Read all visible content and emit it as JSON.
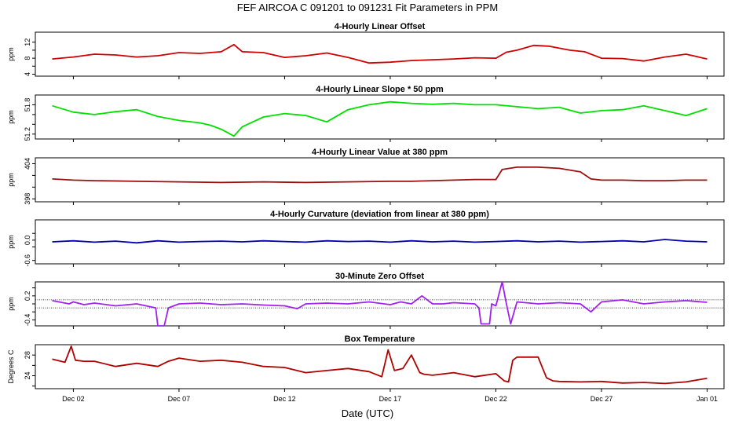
{
  "title": "FEF   AIRCOA C   091201 to 091231   Fit Parameters in PPM",
  "xlabel": "Date (UTC)",
  "x_axis": {
    "unit": "days since Dec 01",
    "range": [
      -0.8,
      31.8
    ],
    "ticks": [
      {
        "value": 1,
        "label": "Dec 02"
      },
      {
        "value": 6,
        "label": "Dec 07"
      },
      {
        "value": 11,
        "label": "Dec 12"
      },
      {
        "value": 16,
        "label": "Dec 17"
      },
      {
        "value": 21,
        "label": "Dec 22"
      },
      {
        "value": 26,
        "label": "Dec 27"
      },
      {
        "value": 31,
        "label": "Jan 01"
      }
    ]
  },
  "chart_data": [
    {
      "type": "line",
      "title": "4-Hourly Linear Offset",
      "ylabel": "ppm",
      "ylim": [
        3.5,
        14.5
      ],
      "yticks": [
        4,
        6,
        8,
        10,
        12
      ],
      "ytick_labels": [
        "4",
        "",
        "8",
        "",
        "12"
      ],
      "color": "#d00000",
      "hlines": [],
      "series": [
        {
          "name": "offset",
          "x": [
            0,
            1,
            2,
            3,
            4,
            5,
            6,
            7,
            8,
            8.6,
            9,
            10,
            11,
            12,
            13,
            14,
            15,
            16,
            17,
            18,
            19,
            20,
            21,
            21.5,
            22,
            22.8,
            23.5,
            24.5,
            25.2,
            26,
            27,
            28,
            29,
            30,
            31
          ],
          "y": [
            7.8,
            8.3,
            9.0,
            8.8,
            8.3,
            8.6,
            9.4,
            9.2,
            9.6,
            11.4,
            9.6,
            9.4,
            8.2,
            8.6,
            9.3,
            8.2,
            6.8,
            7.0,
            7.4,
            7.6,
            7.8,
            8.1,
            8.0,
            9.5,
            10.0,
            11.2,
            11.0,
            10.0,
            9.6,
            8.0,
            7.9,
            7.3,
            8.3,
            9.0,
            7.8
          ]
        }
      ]
    },
    {
      "type": "line",
      "title": "4-Hourly Linear Slope * 50 ppm",
      "ylabel": "ppm",
      "ylim": [
        51.1,
        52.0
      ],
      "yticks": [
        51.2,
        51.4,
        51.6,
        51.8
      ],
      "ytick_labels": [
        "51.2",
        "",
        "",
        "51.8"
      ],
      "color": "#00e000",
      "hlines": [],
      "series": [
        {
          "name": "slope",
          "x": [
            0,
            1,
            2,
            3,
            4,
            5,
            6,
            7,
            7.5,
            8,
            8.6,
            9,
            10,
            11,
            12,
            13,
            14,
            15,
            16,
            17,
            18,
            19,
            20,
            21,
            22,
            23,
            24,
            25,
            26,
            27,
            28,
            29,
            30,
            31
          ],
          "y": [
            51.78,
            51.65,
            51.6,
            51.66,
            51.7,
            51.56,
            51.48,
            51.43,
            51.38,
            51.3,
            51.16,
            51.35,
            51.55,
            51.62,
            51.58,
            51.45,
            51.7,
            51.8,
            51.86,
            51.83,
            51.81,
            51.83,
            51.8,
            51.8,
            51.76,
            51.72,
            51.75,
            51.63,
            51.68,
            51.7,
            51.78,
            51.68,
            51.58,
            51.72
          ]
        }
      ]
    },
    {
      "type": "line",
      "title": "4-Hourly Linear Value at 380 ppm",
      "ylabel": "ppm",
      "ylim": [
        397.5,
        405
      ],
      "yticks": [
        398,
        400,
        402,
        404
      ],
      "ytick_labels": [
        "398",
        "",
        "",
        "404"
      ],
      "color": "#9b1010",
      "hlines": [],
      "series": [
        {
          "name": "value380",
          "x": [
            0,
            1,
            2,
            4,
            6,
            8,
            10,
            12,
            14,
            16,
            17,
            18,
            19,
            20,
            21,
            21.3,
            22,
            23,
            24,
            25,
            25.5,
            26,
            27,
            28,
            29,
            30,
            31
          ],
          "y": [
            401.4,
            401.2,
            401.1,
            401.0,
            400.9,
            400.8,
            400.9,
            400.8,
            400.9,
            401.0,
            401.0,
            401.1,
            401.2,
            401.3,
            401.3,
            403.0,
            403.4,
            403.4,
            403.2,
            402.6,
            401.4,
            401.2,
            401.2,
            401.1,
            401.1,
            401.2,
            401.2
          ]
        }
      ]
    },
    {
      "type": "line",
      "title": "4-Hourly Curvature (deviation from linear at 380 ppm)",
      "ylabel": "ppm",
      "ylim": [
        -0.7,
        0.6
      ],
      "yticks": [
        -0.6,
        -0.2,
        0.0,
        0.2
      ],
      "ytick_labels": [
        "-0.6",
        "",
        "0.0",
        ""
      ],
      "color": "#0000b0",
      "hlines": [],
      "series": [
        {
          "name": "curvature",
          "x": [
            0,
            1,
            2,
            3,
            4,
            5,
            6,
            7,
            8,
            9,
            10,
            11,
            12,
            13,
            14,
            15,
            16,
            17,
            18,
            19,
            20,
            21,
            22,
            23,
            24,
            25,
            26,
            27,
            28,
            29,
            30,
            31
          ],
          "y": [
            -0.05,
            -0.02,
            -0.06,
            -0.03,
            -0.08,
            -0.02,
            -0.06,
            -0.04,
            -0.03,
            -0.05,
            -0.02,
            -0.04,
            -0.06,
            -0.02,
            -0.04,
            -0.03,
            -0.06,
            -0.02,
            -0.05,
            -0.03,
            -0.06,
            -0.04,
            -0.02,
            -0.05,
            -0.03,
            -0.06,
            -0.04,
            -0.02,
            -0.05,
            0.02,
            -0.03,
            -0.05
          ]
        }
      ]
    },
    {
      "type": "line",
      "title": "30-Minute Zero Offset",
      "ylabel": "ppm",
      "ylim": [
        -0.55,
        0.55
      ],
      "yticks": [
        -0.4,
        -0.2,
        0.0,
        0.2,
        0.4
      ],
      "ytick_labels": [
        "-0.4",
        "",
        "",
        "0.2",
        ""
      ],
      "color": "#a020f0",
      "hlines": [
        0.1,
        -0.1
      ],
      "series": [
        {
          "name": "zero",
          "x": [
            0,
            0.8,
            1,
            1.5,
            2,
            3,
            4,
            4.9,
            5.0,
            5.1,
            5.3,
            5.5,
            6,
            7,
            8,
            9,
            10,
            11,
            11.6,
            12,
            13,
            14,
            15,
            16,
            16.5,
            17,
            17.5,
            18,
            18.5,
            19,
            20,
            20.2,
            20.3,
            20.5,
            20.7,
            20.8,
            21,
            21.3,
            21.5,
            21.7,
            22,
            23,
            24,
            25,
            25.5,
            26,
            27,
            28,
            29,
            30,
            31
          ],
          "y": [
            0.08,
            0.0,
            0.05,
            -0.02,
            0.02,
            -0.05,
            0.0,
            -0.1,
            -0.55,
            -0.55,
            -0.55,
            -0.1,
            0.0,
            0.02,
            -0.02,
            0.0,
            -0.03,
            -0.05,
            -0.12,
            0.0,
            0.02,
            0.0,
            0.05,
            -0.02,
            0.05,
            0.0,
            0.2,
            0.0,
            0.0,
            0.03,
            0.0,
            -0.1,
            -0.5,
            -0.5,
            -0.5,
            0.0,
            -0.05,
            0.55,
            0.0,
            -0.5,
            0.05,
            0.0,
            0.03,
            0.0,
            -0.2,
            0.05,
            0.1,
            0.0,
            0.05,
            0.08,
            0.04
          ]
        }
      ]
    },
    {
      "type": "line",
      "title": "Box Temperature",
      "ylabel": "Degrees C",
      "ylim": [
        21.5,
        30.0
      ],
      "yticks": [
        22,
        24,
        26,
        28
      ],
      "ytick_labels": [
        "",
        "24",
        "",
        "28"
      ],
      "color": "#b00000",
      "hlines": [],
      "series": [
        {
          "name": "temperature",
          "x": [
            0,
            0.6,
            0.9,
            1.1,
            1.5,
            2,
            3,
            4,
            5,
            5.5,
            6,
            7,
            8,
            9,
            10,
            11,
            12,
            13,
            14,
            15,
            15.6,
            15.9,
            16.2,
            16.6,
            17,
            17.4,
            17.6,
            18,
            19,
            20,
            21,
            21.4,
            21.6,
            21.8,
            22,
            23,
            23.4,
            23.7,
            24,
            25,
            26,
            27,
            28,
            29,
            30,
            31
          ],
          "y": [
            27.2,
            26.6,
            29.7,
            27.0,
            26.8,
            26.8,
            25.8,
            26.4,
            25.8,
            26.8,
            27.4,
            26.8,
            27.0,
            26.6,
            25.8,
            25.6,
            24.6,
            25.0,
            25.4,
            24.8,
            23.8,
            29.0,
            25.0,
            25.4,
            28.0,
            24.6,
            24.3,
            24.1,
            24.6,
            23.8,
            24.4,
            23.0,
            22.8,
            27.0,
            27.6,
            27.6,
            23.6,
            23.0,
            22.9,
            22.8,
            22.9,
            22.6,
            22.7,
            22.5,
            22.8,
            23.5
          ]
        }
      ]
    }
  ]
}
